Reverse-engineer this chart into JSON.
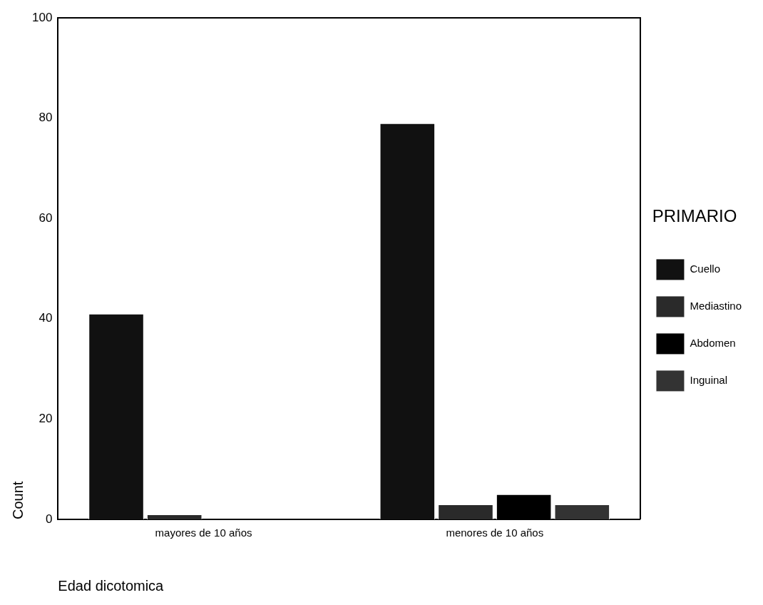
{
  "chart_data": {
    "type": "bar",
    "xlabel": "Edad dicotomica",
    "ylabel": "Count",
    "legend_title": "PRIMARIO",
    "categories": [
      "mayores de 10 años",
      "menores de 10 años"
    ],
    "series": [
      {
        "name": "Cuello",
        "color": "#111111",
        "values": [
          41,
          79
        ]
      },
      {
        "name": "Mediastino",
        "color": "#2a2a2a",
        "values": [
          1,
          3
        ]
      },
      {
        "name": "Abdomen",
        "color": "#000000",
        "values": [
          0,
          5
        ]
      },
      {
        "name": "Inguinal",
        "color": "#333333",
        "values": [
          0,
          3
        ]
      }
    ],
    "ylim": [
      0,
      100
    ],
    "yticks": [
      0,
      20,
      40,
      60,
      80,
      100
    ],
    "grid": false,
    "legend": "right"
  }
}
